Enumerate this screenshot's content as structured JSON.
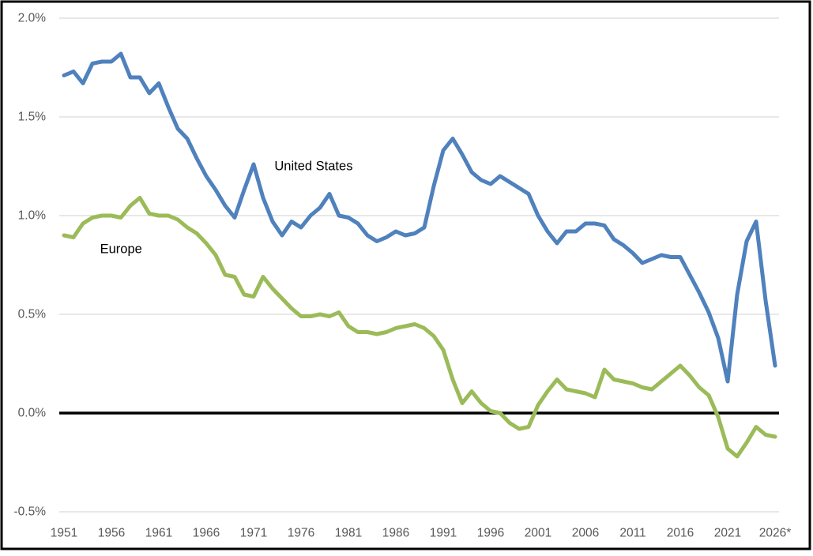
{
  "chart_data": {
    "type": "line",
    "title": "",
    "xlabel": "",
    "ylabel": "",
    "x_start_year": 1951,
    "x_end_year": 2026,
    "ylim": [
      -0.5,
      2.0
    ],
    "grid": "horizontal",
    "gridline_color": "#D9D9D9",
    "zero_line": {
      "value": 0.0,
      "color": "#000000",
      "width": 3.5
    },
    "axis_text_color": "#595959",
    "y_ticks": [
      2.0,
      1.5,
      1.0,
      0.5,
      0.0,
      -0.5
    ],
    "y_tick_labels": [
      "2.0%",
      "1.5%",
      "1.0%",
      "0.5%",
      "0.0%",
      "-0.5%"
    ],
    "x_tick_years": [
      1951,
      1956,
      1961,
      1966,
      1971,
      1976,
      1981,
      1986,
      1991,
      1996,
      2001,
      2006,
      2011,
      2016,
      2021,
      2026
    ],
    "x_tick_labels": [
      "1951",
      "1956",
      "1961",
      "1966",
      "1971",
      "1976",
      "1981",
      "1986",
      "1991",
      "1996",
      "2001",
      "2006",
      "2011",
      "2016",
      "2021",
      "2026*"
    ],
    "x": [
      1951,
      1952,
      1953,
      1954,
      1955,
      1956,
      1957,
      1958,
      1959,
      1960,
      1961,
      1962,
      1963,
      1964,
      1965,
      1966,
      1967,
      1968,
      1969,
      1970,
      1971,
      1972,
      1973,
      1974,
      1975,
      1976,
      1977,
      1978,
      1979,
      1980,
      1981,
      1982,
      1983,
      1984,
      1985,
      1986,
      1987,
      1988,
      1989,
      1990,
      1991,
      1992,
      1993,
      1994,
      1995,
      1996,
      1997,
      1998,
      1999,
      2000,
      2001,
      2002,
      2003,
      2004,
      2005,
      2006,
      2007,
      2008,
      2009,
      2010,
      2011,
      2012,
      2013,
      2014,
      2015,
      2016,
      2017,
      2018,
      2019,
      2020,
      2021,
      2022,
      2023,
      2024,
      2025,
      2026
    ],
    "series": [
      {
        "name": "United States",
        "color": "#4F81BD",
        "stroke_width": 5,
        "unit": "percent",
        "values": [
          1.71,
          1.73,
          1.67,
          1.77,
          1.78,
          1.78,
          1.82,
          1.7,
          1.7,
          1.62,
          1.67,
          1.55,
          1.44,
          1.39,
          1.29,
          1.2,
          1.13,
          1.05,
          0.99,
          1.13,
          1.26,
          1.09,
          0.97,
          0.9,
          0.97,
          0.94,
          1.0,
          1.04,
          1.11,
          1.0,
          0.99,
          0.96,
          0.9,
          0.87,
          0.89,
          0.92,
          0.9,
          0.91,
          0.94,
          1.15,
          1.33,
          1.39,
          1.31,
          1.22,
          1.18,
          1.16,
          1.2,
          1.17,
          1.14,
          1.11,
          1.0,
          0.92,
          0.86,
          0.92,
          0.92,
          0.96,
          0.96,
          0.95,
          0.88,
          0.85,
          0.81,
          0.76,
          0.78,
          0.8,
          0.79,
          0.79,
          0.7,
          0.61,
          0.51,
          0.38,
          0.16,
          0.6,
          0.87,
          0.97,
          0.57,
          0.24
        ]
      },
      {
        "name": "Europe",
        "color": "#9BBB59",
        "stroke_width": 5,
        "unit": "percent",
        "values": [
          0.9,
          0.89,
          0.96,
          0.99,
          1.0,
          1.0,
          0.99,
          1.05,
          1.09,
          1.01,
          1.0,
          1.0,
          0.98,
          0.94,
          0.91,
          0.86,
          0.8,
          0.7,
          0.69,
          0.6,
          0.59,
          0.69,
          0.63,
          0.58,
          0.53,
          0.49,
          0.49,
          0.5,
          0.49,
          0.51,
          0.44,
          0.41,
          0.41,
          0.4,
          0.41,
          0.43,
          0.44,
          0.45,
          0.43,
          0.39,
          0.32,
          0.17,
          0.05,
          0.11,
          0.05,
          0.01,
          0.0,
          -0.05,
          -0.08,
          -0.07,
          0.04,
          0.11,
          0.17,
          0.12,
          0.11,
          0.1,
          0.08,
          0.22,
          0.17,
          0.16,
          0.15,
          0.13,
          0.12,
          0.16,
          0.2,
          0.24,
          0.19,
          0.13,
          0.09,
          -0.02,
          -0.18,
          -0.22,
          -0.15,
          -0.07,
          -0.11,
          -0.12
        ]
      }
    ],
    "annotations": [
      {
        "text": "United States",
        "year": 1973.2,
        "value": 1.25
      },
      {
        "text": "Europe",
        "year": 1954.8,
        "value": 0.83
      }
    ],
    "legend_position": "inline-annotations",
    "frame_color": "#000000"
  }
}
